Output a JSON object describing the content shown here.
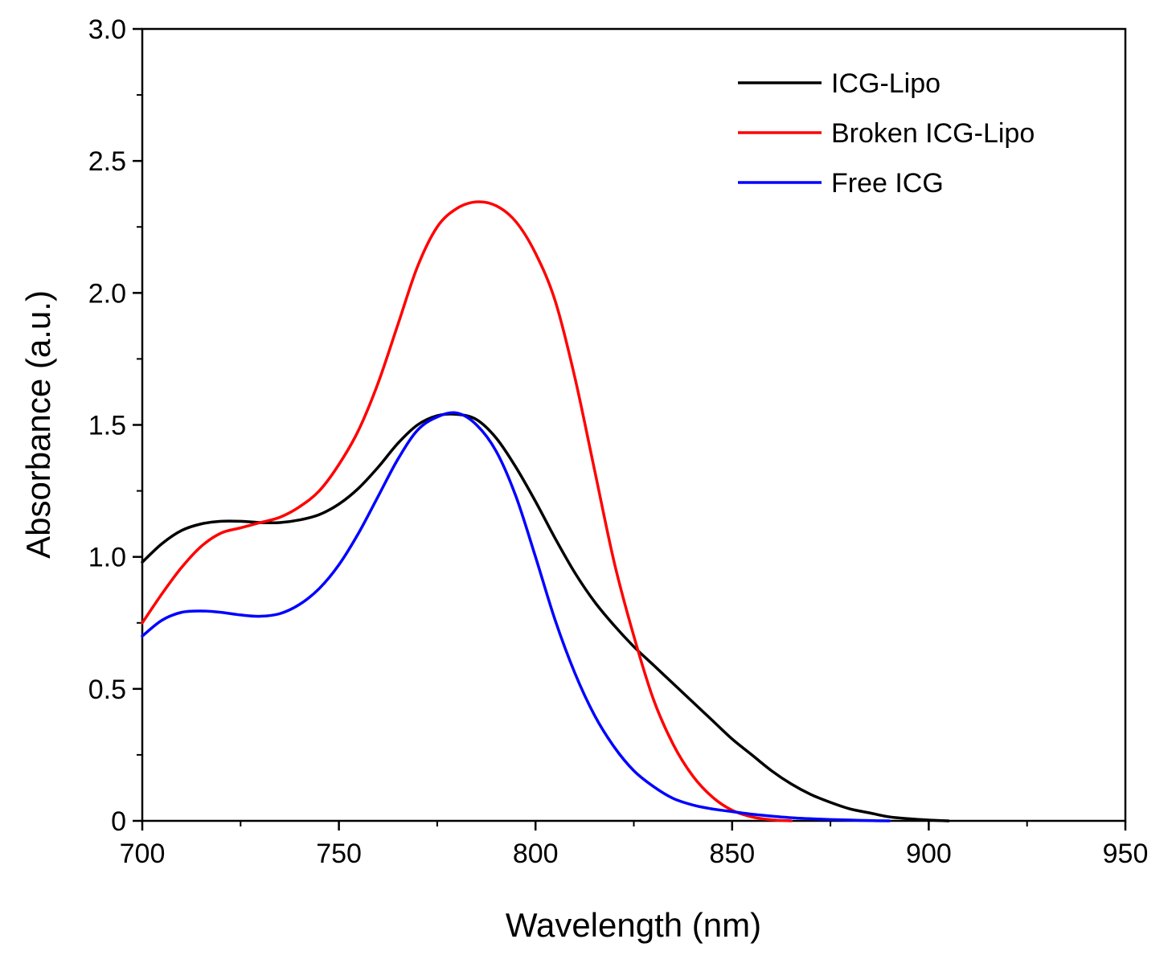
{
  "chart_data": {
    "type": "line",
    "title": "",
    "xlabel": "Wavelength (nm)",
    "ylabel": "Absorbance (a.u.)",
    "xlim": [
      700,
      950
    ],
    "ylim": [
      0,
      3.0
    ],
    "x_major_ticks": [
      700,
      750,
      800,
      850,
      900,
      950
    ],
    "x_tick_labels": [
      "700",
      "750",
      "800",
      "850",
      "900",
      "950"
    ],
    "x_minor_ticks": [
      725,
      775,
      825,
      875,
      925
    ],
    "y_major_ticks": [
      0,
      0.5,
      1.0,
      1.5,
      2.0,
      2.5,
      3.0
    ],
    "y_tick_labels": [
      "0",
      "0.5",
      "1.0",
      "1.5",
      "2.0",
      "2.5",
      "3.0"
    ],
    "y_minor_ticks": [
      0.25,
      0.75,
      1.25,
      1.75,
      2.25,
      2.75
    ],
    "grid": false,
    "legend_position": "top-right",
    "series": [
      {
        "name": "ICG-Lipo",
        "color": "#000000",
        "x": [
          700,
          705,
          710,
          715,
          720,
          725,
          730,
          735,
          740,
          745,
          750,
          755,
          760,
          765,
          770,
          775,
          780,
          785,
          790,
          795,
          800,
          805,
          810,
          815,
          820,
          825,
          830,
          835,
          840,
          845,
          850,
          855,
          860,
          865,
          870,
          875,
          880,
          885,
          890,
          895,
          900,
          905
        ],
        "y": [
          0.98,
          1.05,
          1.1,
          1.125,
          1.135,
          1.135,
          1.13,
          1.13,
          1.14,
          1.16,
          1.2,
          1.26,
          1.34,
          1.43,
          1.5,
          1.535,
          1.54,
          1.52,
          1.45,
          1.34,
          1.21,
          1.07,
          0.94,
          0.83,
          0.74,
          0.66,
          0.59,
          0.52,
          0.45,
          0.38,
          0.31,
          0.25,
          0.19,
          0.14,
          0.1,
          0.07,
          0.045,
          0.03,
          0.015,
          0.008,
          0.003,
          0.0
        ]
      },
      {
        "name": "Broken ICG-Lipo",
        "color": "#ff0000",
        "x": [
          700,
          705,
          710,
          715,
          720,
          725,
          730,
          735,
          740,
          745,
          750,
          755,
          760,
          765,
          770,
          775,
          780,
          785,
          790,
          795,
          800,
          805,
          810,
          815,
          820,
          825,
          830,
          835,
          840,
          845,
          850,
          855,
          860,
          865
        ],
        "y": [
          0.75,
          0.86,
          0.96,
          1.04,
          1.09,
          1.11,
          1.13,
          1.15,
          1.19,
          1.25,
          1.35,
          1.48,
          1.66,
          1.88,
          2.1,
          2.25,
          2.32,
          2.345,
          2.33,
          2.27,
          2.15,
          1.97,
          1.68,
          1.33,
          0.98,
          0.7,
          0.46,
          0.29,
          0.17,
          0.09,
          0.04,
          0.015,
          0.004,
          0.0
        ]
      },
      {
        "name": "Free ICG",
        "color": "#0000ff",
        "x": [
          700,
          705,
          710,
          715,
          720,
          725,
          730,
          735,
          740,
          745,
          750,
          755,
          760,
          765,
          770,
          775,
          780,
          785,
          790,
          795,
          800,
          805,
          810,
          815,
          820,
          825,
          830,
          835,
          840,
          845,
          850,
          855,
          860,
          865,
          870,
          875,
          880,
          885,
          890
        ],
        "y": [
          0.7,
          0.76,
          0.79,
          0.795,
          0.79,
          0.78,
          0.775,
          0.785,
          0.82,
          0.88,
          0.97,
          1.09,
          1.23,
          1.37,
          1.48,
          1.53,
          1.545,
          1.5,
          1.4,
          1.23,
          1.0,
          0.76,
          0.56,
          0.4,
          0.28,
          0.19,
          0.13,
          0.085,
          0.06,
          0.045,
          0.035,
          0.025,
          0.018,
          0.012,
          0.008,
          0.005,
          0.003,
          0.001,
          0.0
        ]
      }
    ]
  }
}
